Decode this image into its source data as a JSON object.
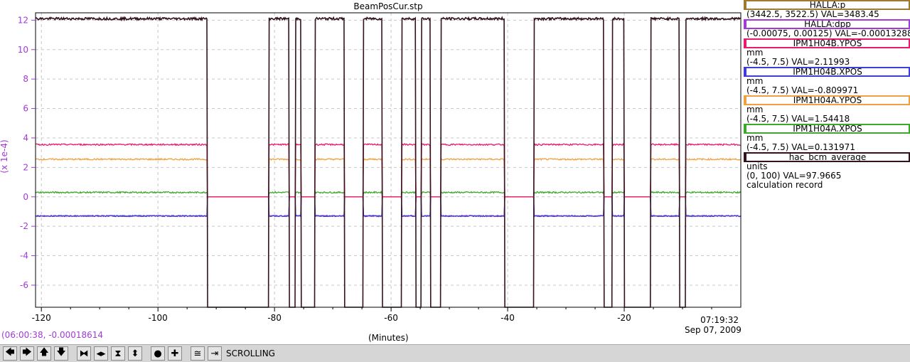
{
  "window_title": "BeamPosCur.stp",
  "cursor_readout": "(06:00:38, -0.00018614",
  "x_axis": {
    "label": "(Minutes)",
    "end_time": "07:19:32",
    "end_date": "Sep 07, 2009"
  },
  "y_axis": {
    "label": "(x 1e-4)"
  },
  "legend": [
    {
      "name": "HALLA:p",
      "lines": [
        "(3442.5, 3522.5) VAL=3483.45"
      ],
      "color": "#9c7a2f"
    },
    {
      "name": "HALLA:dpp",
      "lines": [
        "(-0.00075, 0.00125) VAL=-0.00013288"
      ],
      "color": "#a23ad9"
    },
    {
      "name": "IPM1H04B.YPOS",
      "lines": [
        "mm",
        "(-4.5, 7.5) VAL=2.11993"
      ],
      "color": "#e8196f"
    },
    {
      "name": "IPM1H04B.XPOS",
      "lines": [
        "mm",
        "(-4.5, 7.5) VAL=-0.809971"
      ],
      "color": "#3d3dd8"
    },
    {
      "name": "IPM1H04A.YPOS",
      "lines": [
        "mm",
        "(-4.5, 7.5) VAL=1.54418"
      ],
      "color": "#f0a040"
    },
    {
      "name": "IPM1H04A.XPOS",
      "lines": [
        "mm",
        "(-4.5, 7.5) VAL=0.131971"
      ],
      "color": "#3da82a"
    },
    {
      "name": "hac_bcm_average",
      "lines": [
        "units",
        "(0, 100) VAL=97.9665",
        "calculation record"
      ],
      "color": "#33121e"
    }
  ],
  "toolbar": {
    "buttons": [
      {
        "name": "scroll-left",
        "glyph": "🡄"
      },
      {
        "name": "scroll-right",
        "glyph": "🡆"
      },
      {
        "name": "scroll-up",
        "glyph": "🡅"
      },
      {
        "name": "scroll-down",
        "glyph": "🡇"
      },
      {
        "name": "zoom-in-x",
        "glyph": "⧓"
      },
      {
        "name": "zoom-out-x",
        "glyph": "◂▸"
      },
      {
        "name": "zoom-in-y",
        "glyph": "⧗"
      },
      {
        "name": "zoom-out-y",
        "glyph": "⬍"
      },
      {
        "name": "stop",
        "glyph": "●"
      },
      {
        "name": "add",
        "glyph": "✚"
      },
      {
        "name": "autoscale",
        "glyph": "≅"
      },
      {
        "name": "scroll-mode",
        "glyph": "⇥"
      }
    ],
    "mode_label": "SCROLLING"
  },
  "chart_data": {
    "type": "line",
    "title": "BeamPosCur.stp",
    "xlabel": "(Minutes)",
    "ylabel": "(x 1e-4)",
    "xlim": [
      -121,
      0
    ],
    "ylim": [
      -7.5,
      12.5
    ],
    "xticks": [
      -120,
      -100,
      -80,
      -60,
      -40,
      -20
    ],
    "yticks": [
      12,
      10,
      8,
      6,
      4,
      2,
      0,
      -2,
      -4,
      -6
    ],
    "grid": true,
    "beam_off_intervals": [
      [
        -91.5,
        -81
      ],
      [
        -77.5,
        -76.4
      ],
      [
        -75.5,
        -73
      ],
      [
        -68,
        -64.8
      ],
      [
        -61.5,
        -58.2
      ],
      [
        -55.8,
        -54.8
      ],
      [
        -53.2,
        -51.5
      ],
      [
        -40.5,
        -35.5
      ],
      [
        -23.5,
        -22
      ],
      [
        -20,
        -15.5
      ],
      [
        -10.5,
        -9.5
      ]
    ],
    "series": [
      {
        "name": "hac_bcm_average",
        "color": "#33121e",
        "on_value": 12.1,
        "off_value": -7.5,
        "noise": 0.08
      },
      {
        "name": "IPM1H04B.YPOS",
        "color": "#e8196f",
        "on_value": 3.55,
        "off_value": 0.0,
        "noise": 0.05
      },
      {
        "name": "IPM1H04A.YPOS",
        "color": "#f0a040",
        "on_value": 2.55,
        "off_value": 0.0,
        "noise": 0.05
      },
      {
        "name": "IPM1H04A.XPOS",
        "color": "#3da82a",
        "on_value": 0.3,
        "off_value": 0.0,
        "noise": 0.05
      },
      {
        "name": "IPM1H04B.XPOS",
        "color": "#3d3dd8",
        "on_value": -1.3,
        "off_value": 0.0,
        "noise": 0.04
      },
      {
        "name": "HALLA:dpp",
        "color": "#a23ad9",
        "on_value": -1.3,
        "off_value": 0.0,
        "noise": 0.04
      }
    ]
  }
}
